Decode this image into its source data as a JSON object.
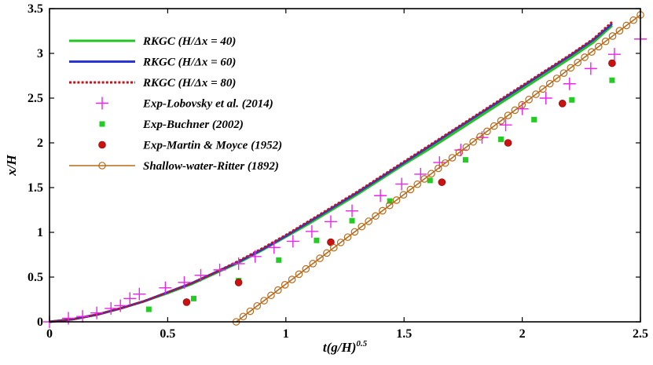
{
  "chart_data": {
    "type": "line",
    "xlabel": "t(g/H)",
    "xlabel_sup": "0.5",
    "ylabel": "x/H",
    "xlim": [
      0,
      2.5
    ],
    "ylim": [
      0,
      3.5
    ],
    "xticks": [
      0,
      0.5,
      1,
      1.5,
      2,
      2.5
    ],
    "yticks": [
      0,
      0.5,
      1,
      1.5,
      2,
      2.5,
      3,
      3.5
    ],
    "xtick_labels": [
      "0",
      "0.5",
      "1",
      "1.5",
      "2",
      "2.5"
    ],
    "ytick_labels": [
      "0",
      "0.5",
      "1",
      "1.5",
      "2",
      "2.5",
      "3",
      "3.5"
    ],
    "grid": false,
    "legend_position": "top-left",
    "series": [
      {
        "name": "RKGC (H/Δx = 40)",
        "kind": "line",
        "style": "solid",
        "color": "#22c322",
        "x": [
          0,
          0.1,
          0.2,
          0.3,
          0.4,
          0.5,
          0.6,
          0.7,
          0.8,
          0.9,
          1.0,
          1.1,
          1.2,
          1.3,
          1.4,
          1.5,
          1.6,
          1.7,
          1.8,
          1.9,
          2.0,
          2.1,
          2.2,
          2.3,
          2.38
        ],
        "y": [
          0,
          0.03,
          0.08,
          0.15,
          0.23,
          0.32,
          0.42,
          0.54,
          0.66,
          0.8,
          0.95,
          1.1,
          1.26,
          1.42,
          1.59,
          1.76,
          1.92,
          2.09,
          2.26,
          2.43,
          2.6,
          2.77,
          2.94,
          3.12,
          3.31
        ]
      },
      {
        "name": "RKGC (H/Δx = 60)",
        "kind": "line",
        "style": "solid",
        "color": "#2a35d6",
        "x": [
          0,
          0.1,
          0.2,
          0.3,
          0.4,
          0.5,
          0.6,
          0.7,
          0.8,
          0.9,
          1.0,
          1.1,
          1.2,
          1.3,
          1.4,
          1.5,
          1.6,
          1.7,
          1.8,
          1.9,
          2.0,
          2.1,
          2.2,
          2.3,
          2.38
        ],
        "y": [
          0,
          0.03,
          0.08,
          0.15,
          0.23,
          0.33,
          0.43,
          0.55,
          0.67,
          0.81,
          0.96,
          1.12,
          1.28,
          1.44,
          1.61,
          1.78,
          1.95,
          2.12,
          2.29,
          2.46,
          2.63,
          2.8,
          2.97,
          3.15,
          3.33
        ]
      },
      {
        "name": "RKGC (H/Δx = 80)",
        "kind": "line",
        "style": "dotted",
        "color": "#c0141c",
        "x": [
          0,
          0.1,
          0.2,
          0.3,
          0.4,
          0.5,
          0.6,
          0.7,
          0.8,
          0.9,
          1.0,
          1.1,
          1.2,
          1.3,
          1.4,
          1.5,
          1.6,
          1.7,
          1.8,
          1.9,
          2.0,
          2.1,
          2.2,
          2.3,
          2.38
        ],
        "y": [
          0,
          0.03,
          0.08,
          0.15,
          0.23,
          0.33,
          0.43,
          0.55,
          0.68,
          0.82,
          0.97,
          1.13,
          1.29,
          1.45,
          1.62,
          1.79,
          1.96,
          2.13,
          2.3,
          2.47,
          2.64,
          2.81,
          2.98,
          3.16,
          3.35
        ]
      },
      {
        "name": "Exp-Lobovsky et al. (2014)",
        "kind": "scatter",
        "marker": "plus",
        "color": "#ee22ee",
        "x": [
          0.0,
          0.08,
          0.14,
          0.2,
          0.26,
          0.3,
          0.34,
          0.38,
          0.49,
          0.57,
          0.64,
          0.72,
          0.8,
          0.87,
          0.95,
          1.03,
          1.11,
          1.19,
          1.28,
          1.4,
          1.49,
          1.57,
          1.65,
          1.74,
          1.83,
          1.93,
          2.0,
          2.1,
          2.2,
          2.29,
          2.39,
          2.5
        ],
        "y": [
          0.0,
          0.04,
          0.06,
          0.1,
          0.15,
          0.18,
          0.26,
          0.31,
          0.38,
          0.44,
          0.52,
          0.58,
          0.65,
          0.73,
          0.83,
          0.9,
          1.01,
          1.12,
          1.24,
          1.41,
          1.54,
          1.65,
          1.78,
          1.92,
          2.06,
          2.2,
          2.38,
          2.5,
          2.66,
          2.83,
          2.99,
          3.16
        ]
      },
      {
        "name": "Exp-Buchner (2002)",
        "kind": "scatter",
        "marker": "square",
        "color": "#22cc22",
        "x": [
          0.42,
          0.61,
          0.8,
          0.97,
          1.13,
          1.28,
          1.44,
          1.61,
          1.76,
          1.91,
          2.05,
          2.21,
          2.38
        ],
        "y": [
          0.14,
          0.26,
          0.46,
          0.69,
          0.91,
          1.13,
          1.35,
          1.58,
          1.81,
          2.04,
          2.26,
          2.48,
          2.7
        ]
      },
      {
        "name": "Exp-Martin & Moyce (1952)",
        "kind": "scatter",
        "marker": "circle",
        "color": "#cc1111",
        "x": [
          0.58,
          0.8,
          1.19,
          1.66,
          1.94,
          2.17,
          2.38
        ],
        "y": [
          0.22,
          0.44,
          0.89,
          1.56,
          2.0,
          2.44,
          2.89
        ]
      },
      {
        "name": "Shallow-water-Ritter (1892)",
        "kind": "line-marker",
        "style": "solid",
        "marker": "open-circle",
        "color": "#b86a1a",
        "x": [
          0.79,
          2.5
        ],
        "y": [
          0.0,
          3.43
        ]
      }
    ]
  }
}
